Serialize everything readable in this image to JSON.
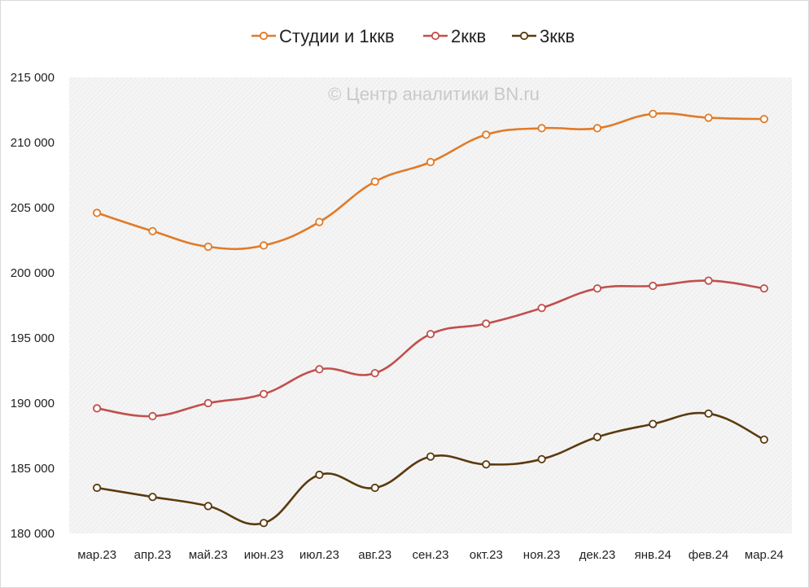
{
  "chart_data": {
    "type": "line",
    "title": "",
    "xlabel": "",
    "ylabel": "",
    "watermark": "© Центр аналитики BN.ru",
    "categories": [
      "мар.23",
      "апр.23",
      "май.23",
      "июн.23",
      "июл.23",
      "авг.23",
      "сен.23",
      "окт.23",
      "ноя.23",
      "дек.23",
      "янв.24",
      "фев.24",
      "мар.24"
    ],
    "ylim": [
      180000,
      215000
    ],
    "yticks": [
      180000,
      185000,
      190000,
      195000,
      200000,
      205000,
      210000,
      215000
    ],
    "ytick_labels": [
      "180 000",
      "185 000",
      "190 000",
      "195 000",
      "200 000",
      "205 000",
      "210 000",
      "215 000"
    ],
    "grid": false,
    "legend_position": "top",
    "background": "light gray diagonal hatch",
    "series": [
      {
        "name": "Студии и 1ккв",
        "color": "#E07B28",
        "values": [
          204600,
          203200,
          202000,
          202100,
          203900,
          207000,
          208500,
          210600,
          211100,
          211100,
          212200,
          211900,
          211800
        ]
      },
      {
        "name": "2ккв",
        "color": "#C0504D",
        "values": [
          189600,
          189000,
          190000,
          190700,
          192600,
          192300,
          195300,
          196100,
          197300,
          198800,
          199000,
          199400,
          198800
        ]
      },
      {
        "name": "3ккв",
        "color": "#5B3A0E",
        "values": [
          183500,
          182800,
          182100,
          180800,
          184500,
          183500,
          185900,
          185300,
          185700,
          187400,
          188400,
          189200,
          187200
        ]
      }
    ]
  }
}
